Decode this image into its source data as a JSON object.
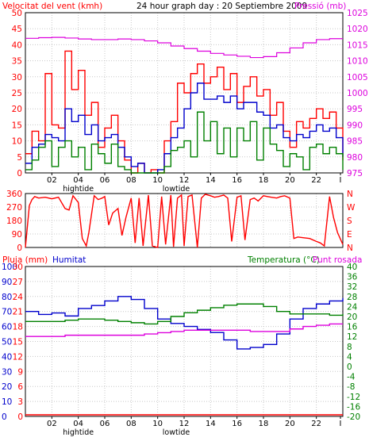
{
  "colors": {
    "red": "#ff0000",
    "blue": "#0000cc",
    "green": "#008000",
    "magenta": "#dd00dd",
    "black": "#000000",
    "grid": "#c8c8c8",
    "frame": "#000000",
    "background": "#ffffff"
  },
  "header": {
    "left_label": "Velocitat del vent (kmh)",
    "center_label": "24 hour graph day : 20 Septiembre 2009",
    "right_label": "Pressió (mb)"
  },
  "tide_labels": {
    "high": "hightide",
    "low": "lowtide"
  },
  "x_ticks": [
    "02",
    "04",
    "06",
    "08",
    "10",
    "12",
    "14",
    "16",
    "18",
    "20",
    "22",
    "I"
  ],
  "panel3_header": {
    "rain_label": "Pluja (mm)",
    "humidity_label": "Humitat",
    "temp_label": "Temperatura (°C)",
    "dewpoint_label": "Punt rosada"
  },
  "chart_data": [
    {
      "type": "line",
      "title": "24 hour graph day : 20 Septiembre 2009",
      "xlabel": "",
      "xlim": [
        0,
        24
      ],
      "y_left_label": "Velocitat del vent (kmh)",
      "y_left_ticks": [
        0,
        5,
        10,
        15,
        20,
        25,
        30,
        35,
        40,
        45,
        50
      ],
      "y_left_lim": [
        0,
        50
      ],
      "y_right_label": "Pressió (mb)",
      "y_right_ticks": [
        975,
        980,
        985,
        990,
        995,
        1000,
        1005,
        1010,
        1015,
        1020,
        1025
      ],
      "y_right_lim": [
        975,
        1025
      ],
      "grid": true,
      "series": [
        {
          "name": "Pressió (mb)",
          "color": "magenta",
          "axis": "right",
          "x": [
            0,
            1,
            2,
            3,
            4,
            5,
            6,
            7,
            8,
            9,
            10,
            11,
            12,
            13,
            14,
            15,
            16,
            17,
            18,
            19,
            20,
            21,
            22,
            23,
            24
          ],
          "values": [
            1017,
            1017.2,
            1017.3,
            1017.1,
            1016.8,
            1016.6,
            1016.6,
            1016.8,
            1016.6,
            1016.2,
            1015.6,
            1014.6,
            1013.8,
            1013,
            1012.3,
            1011.8,
            1011.4,
            1011,
            1011.3,
            1012.5,
            1014,
            1015.6,
            1016.6,
            1016.9,
            1016.9
          ]
        },
        {
          "name": "gust",
          "color": "red",
          "axis": "left",
          "x": [
            0,
            0.5,
            1,
            1.5,
            2,
            2.5,
            3,
            3.5,
            4,
            4.5,
            5,
            5.5,
            6,
            6.5,
            7,
            7.5,
            8,
            8.5,
            9,
            9.5,
            10,
            10.5,
            11,
            11.5,
            12,
            12.5,
            13,
            13.5,
            14,
            14.5,
            15,
            15.5,
            16,
            16.5,
            17,
            17.5,
            18,
            18.5,
            19,
            19.5,
            20,
            20.5,
            21,
            21.5,
            22,
            22.5,
            23,
            23.5,
            24
          ],
          "values": [
            6,
            13,
            10,
            31,
            15,
            14,
            38,
            26,
            32,
            18,
            22,
            8,
            14,
            18,
            10,
            4,
            0,
            3,
            0,
            1,
            0,
            10,
            16,
            28,
            25,
            31,
            34,
            28,
            30,
            33,
            26,
            31,
            22,
            27,
            30,
            24,
            26,
            18,
            22,
            13,
            8,
            16,
            14,
            17,
            20,
            17,
            19,
            14,
            4
          ]
        },
        {
          "name": "avg",
          "color": "blue",
          "axis": "left",
          "x": [
            0,
            0.5,
            1,
            1.5,
            2,
            2.5,
            3,
            3.5,
            4,
            4.5,
            5,
            5.5,
            6,
            6.5,
            7,
            7.5,
            8,
            8.5,
            9,
            9.5,
            10,
            10.5,
            11,
            11.5,
            12,
            12.5,
            13,
            13.5,
            14,
            14.5,
            15,
            15.5,
            16,
            16.5,
            17,
            17.5,
            18,
            18.5,
            19,
            19.5,
            20,
            20.5,
            21,
            21.5,
            22,
            22.5,
            23,
            23.5,
            24
          ],
          "values": [
            3,
            8,
            9,
            12,
            11,
            10,
            20,
            16,
            18,
            12,
            15,
            10,
            11,
            12,
            8,
            5,
            2,
            3,
            0,
            0,
            1,
            6,
            11,
            14,
            20,
            25,
            28,
            23,
            23,
            24,
            22,
            24,
            20,
            22,
            22,
            19,
            18,
            14,
            15,
            11,
            10,
            12,
            11,
            13,
            15,
            13,
            14,
            11,
            5
          ]
        },
        {
          "name": "min",
          "color": "green",
          "axis": "left",
          "x": [
            0,
            0.5,
            1,
            1.5,
            2,
            2.5,
            3,
            3.5,
            4,
            4.5,
            5,
            5.5,
            6,
            6.5,
            7,
            7.5,
            8,
            8.5,
            9,
            9.5,
            10,
            10.5,
            11,
            11.5,
            12,
            12.5,
            13,
            13.5,
            14,
            14.5,
            15,
            15.5,
            16,
            16.5,
            17,
            17.5,
            18,
            18.5,
            19,
            19.5,
            20,
            20.5,
            21,
            21.5,
            22,
            22.5,
            23,
            23.5,
            24
          ],
          "values": [
            1,
            4,
            8,
            10,
            2,
            8,
            10,
            5,
            8,
            1,
            9,
            6,
            3,
            9,
            2,
            1,
            0,
            0,
            0,
            0,
            0,
            2,
            7,
            8,
            10,
            5,
            19,
            10,
            16,
            6,
            14,
            5,
            14,
            10,
            16,
            4,
            14,
            9,
            7,
            2,
            6,
            5,
            1,
            8,
            9,
            6,
            8,
            6,
            1
          ]
        }
      ]
    },
    {
      "type": "line",
      "title": "",
      "xlabel": "",
      "xlim": [
        0,
        24
      ],
      "y_left_ticks": [
        0,
        90,
        180,
        270,
        360
      ],
      "y_left_lim": [
        0,
        360
      ],
      "y_right_ticks": [
        "N",
        "W",
        "S",
        "E",
        "N"
      ],
      "grid": true,
      "series": [
        {
          "name": "wind direction",
          "color": "red",
          "x": [
            0,
            0.3,
            0.5,
            0.7,
            1,
            1.5,
            2,
            2.5,
            3,
            3.3,
            3.6,
            4,
            4.3,
            4.6,
            4.8,
            5.2,
            5.5,
            5.8,
            6,
            6.3,
            6.6,
            7,
            7.3,
            7.6,
            8,
            8.3,
            8.6,
            8.9,
            9.3,
            9.6,
            10,
            10.3,
            10.6,
            11,
            11.2,
            11.5,
            11.8,
            12,
            12.3,
            12.6,
            13,
            13.3,
            13.6,
            14,
            14.3,
            14.6,
            15,
            15.3,
            15.6,
            16,
            16.3,
            16.6,
            17,
            17.3,
            17.6,
            18,
            18.3,
            18.6,
            19,
            19.3,
            19.6,
            20,
            20.3,
            20.6,
            21,
            21.5,
            22,
            22.3,
            22.6,
            23,
            23.3,
            23.6,
            24
          ],
          "values": [
            0,
            280,
            320,
            340,
            330,
            335,
            325,
            335,
            260,
            250,
            345,
            300,
            60,
            10,
            100,
            345,
            320,
            330,
            340,
            150,
            230,
            260,
            80,
            200,
            330,
            30,
            330,
            10,
            350,
            10,
            0,
            340,
            20,
            350,
            5,
            330,
            350,
            10,
            340,
            350,
            0,
            330,
            355,
            345,
            335,
            340,
            350,
            330,
            40,
            335,
            345,
            50,
            320,
            330,
            310,
            345,
            340,
            335,
            330,
            340,
            345,
            330,
            60,
            70,
            65,
            60,
            40,
            30,
            10,
            340,
            200,
            100,
            20
          ]
        }
      ]
    },
    {
      "type": "line",
      "title": "",
      "xlabel": "",
      "xlim": [
        0,
        24
      ],
      "y_left_outer_label": "Pluja (mm)",
      "y_left_outer_ticks": [
        0,
        10,
        20,
        30,
        40,
        50,
        60,
        70,
        80,
        90,
        100
      ],
      "y_left_inner_label": "Humitat",
      "y_left_inner_ticks": [
        0,
        3,
        6,
        9,
        12,
        15,
        18,
        21,
        24,
        27,
        30
      ],
      "y_right_label": "Temperatura (°C)",
      "y_right_ticks": [
        -20,
        -16,
        -12,
        -8,
        -4,
        0,
        4,
        8,
        12,
        16,
        20,
        24,
        28,
        32,
        36,
        40
      ],
      "y_right_lim": [
        -20,
        40
      ],
      "grid": true,
      "series": [
        {
          "name": "Humitat",
          "color": "blue",
          "x": [
            0,
            1,
            2,
            3,
            4,
            5,
            6,
            7,
            8,
            9,
            10,
            11,
            12,
            13,
            14,
            15,
            16,
            17,
            18,
            19,
            20,
            21,
            22,
            23,
            24
          ],
          "values": [
            70,
            68,
            69,
            67,
            72,
            74,
            77,
            80,
            78,
            72,
            65,
            62,
            60,
            58,
            56,
            51,
            45,
            46,
            48,
            55,
            65,
            72,
            75,
            77,
            79
          ]
        },
        {
          "name": "Temperatura (°C)",
          "color": "green",
          "x": [
            0,
            1,
            2,
            3,
            4,
            5,
            6,
            7,
            8,
            9,
            10,
            11,
            12,
            13,
            14,
            15,
            16,
            17,
            18,
            19,
            20,
            21,
            22,
            23,
            24
          ],
          "values": [
            18,
            18,
            18,
            18.5,
            19,
            19,
            18.5,
            18,
            17.5,
            17,
            18,
            20,
            21.5,
            22.5,
            23.5,
            24.5,
            25,
            25,
            24,
            22,
            21,
            21,
            21,
            20.5,
            21
          ]
        },
        {
          "name": "Punt rosada",
          "color": "magenta",
          "x": [
            0,
            1,
            2,
            3,
            4,
            5,
            6,
            7,
            8,
            9,
            10,
            11,
            12,
            13,
            14,
            15,
            16,
            17,
            18,
            19,
            20,
            21,
            22,
            23,
            24
          ],
          "values": [
            12,
            12,
            12,
            12.5,
            12.5,
            12.5,
            12.5,
            12.5,
            12.5,
            13,
            13.5,
            14,
            14.5,
            14.5,
            14.5,
            14.5,
            14.5,
            14,
            14,
            14,
            15,
            16,
            16.5,
            17,
            17
          ]
        },
        {
          "name": "Pluja (mm)",
          "color": "red",
          "x": [
            0,
            24
          ],
          "values": [
            0,
            0
          ]
        }
      ]
    }
  ]
}
